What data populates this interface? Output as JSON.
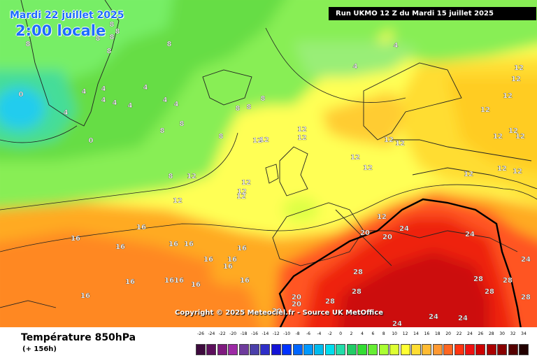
{
  "header": {
    "date": "Mardi 22 juillet 2025",
    "time": "2:00 locale",
    "run": "Run UKMO 12 Z du Mardi 15 juillet 2025"
  },
  "map": {
    "copyright": "Copyright © 2025 Meteociel.fr - Source UK MetOffice",
    "labels": [
      "12",
      "12",
      "12",
      "12",
      "12",
      "12",
      "12",
      "12",
      "12",
      "12",
      "12",
      "12",
      "12",
      "12",
      "12",
      "12",
      "12",
      "12",
      "12",
      "12",
      "12",
      "12",
      "12",
      "12",
      "8",
      "8",
      "8",
      "8",
      "8",
      "8",
      "8",
      "8",
      "8",
      "8",
      "8",
      "8",
      "8",
      "8",
      "4",
      "4",
      "4",
      "4",
      "4",
      "4",
      "4",
      "4",
      "4",
      "4",
      "4",
      "0",
      "0",
      "16",
      "16",
      "16",
      "16",
      "16",
      "16",
      "16",
      "16",
      "16",
      "16",
      "16",
      "16",
      "16",
      "16",
      "16",
      "20",
      "20",
      "20",
      "20",
      "20",
      "24",
      "24",
      "24",
      "24",
      "24",
      "24",
      "28",
      "28",
      "28",
      "28",
      "28",
      "28",
      "28"
    ]
  },
  "footer": {
    "param": "Température 850hPa",
    "lead": "(+ 156h)"
  },
  "scale": {
    "labels": [
      "-26",
      "-24",
      "-22",
      "-20",
      "-18",
      "-16",
      "-14",
      "-12",
      "-10",
      "-8",
      "-6",
      "-4",
      "-2",
      "0",
      "2",
      "4",
      "6",
      "8",
      "10",
      "12",
      "14",
      "16",
      "18",
      "20",
      "22",
      "24",
      "26",
      "28",
      "30",
      "32",
      "34"
    ],
    "colors": [
      "#3d0a3d",
      "#5c0f5c",
      "#7f1a7f",
      "#9d2aa5",
      "#6e3b9c",
      "#4b3faa",
      "#2e2ec8",
      "#1414d6",
      "#0032ff",
      "#0066ff",
      "#0099ff",
      "#00bbee",
      "#00ddee",
      "#22ddaa",
      "#22cc66",
      "#33dd33",
      "#66ee33",
      "#aaff33",
      "#ddff33",
      "#ffff33",
      "#ffdd33",
      "#ffbb33",
      "#ff9933",
      "#ff6622",
      "#ff3311",
      "#ee1111",
      "#cc0000",
      "#aa0000",
      "#880000",
      "#550000",
      "#220000"
    ]
  }
}
